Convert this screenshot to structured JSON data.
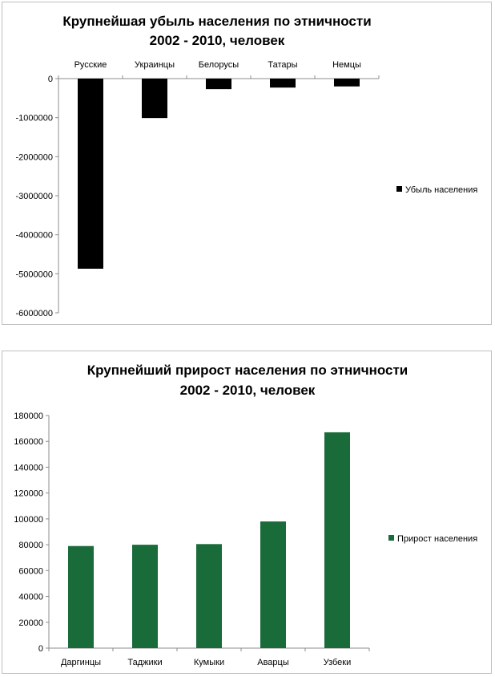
{
  "chart_data": [
    {
      "type": "bar",
      "title": [
        "Крупнейшая убыль населения по этничности",
        "2002 - 2010, человек"
      ],
      "categories": [
        "Русские",
        "Украинцы",
        "Белорусы",
        "Татары",
        "Немцы"
      ],
      "series": [
        {
          "name": "Убыль населения",
          "values": [
            -4870000,
            -1010000,
            -270000,
            -230000,
            -200000
          ]
        }
      ],
      "ylim": [
        -6000000,
        0
      ],
      "yticks": [
        0,
        -1000000,
        -2000000,
        -3000000,
        -4000000,
        -5000000,
        -6000000
      ],
      "ytick_labels": [
        "0",
        "-1000000",
        "-2000000",
        "-3000000",
        "-4000000",
        "-5000000",
        "-6000000"
      ],
      "color": "#000000",
      "xaxis_position": "top",
      "legend_position": "right",
      "grid": false
    },
    {
      "type": "bar",
      "title": [
        "Крупнейший прирост населения по этничности",
        "2002 - 2010, человек"
      ],
      "categories": [
        "Даргинцы",
        "Таджики",
        "Кумыки",
        "Аварцы",
        "Узбеки"
      ],
      "series": [
        {
          "name": "Прирост населения",
          "values": [
            79000,
            80000,
            80500,
            98000,
            167000
          ]
        }
      ],
      "ylim": [
        0,
        180000
      ],
      "yticks": [
        0,
        20000,
        40000,
        60000,
        80000,
        100000,
        120000,
        140000,
        160000,
        180000
      ],
      "ytick_labels": [
        "0",
        "20000",
        "40000",
        "60000",
        "80000",
        "100000",
        "120000",
        "140000",
        "160000",
        "180000"
      ],
      "color": "#1a6b3a",
      "xaxis_position": "bottom",
      "legend_position": "right",
      "grid": false
    }
  ]
}
